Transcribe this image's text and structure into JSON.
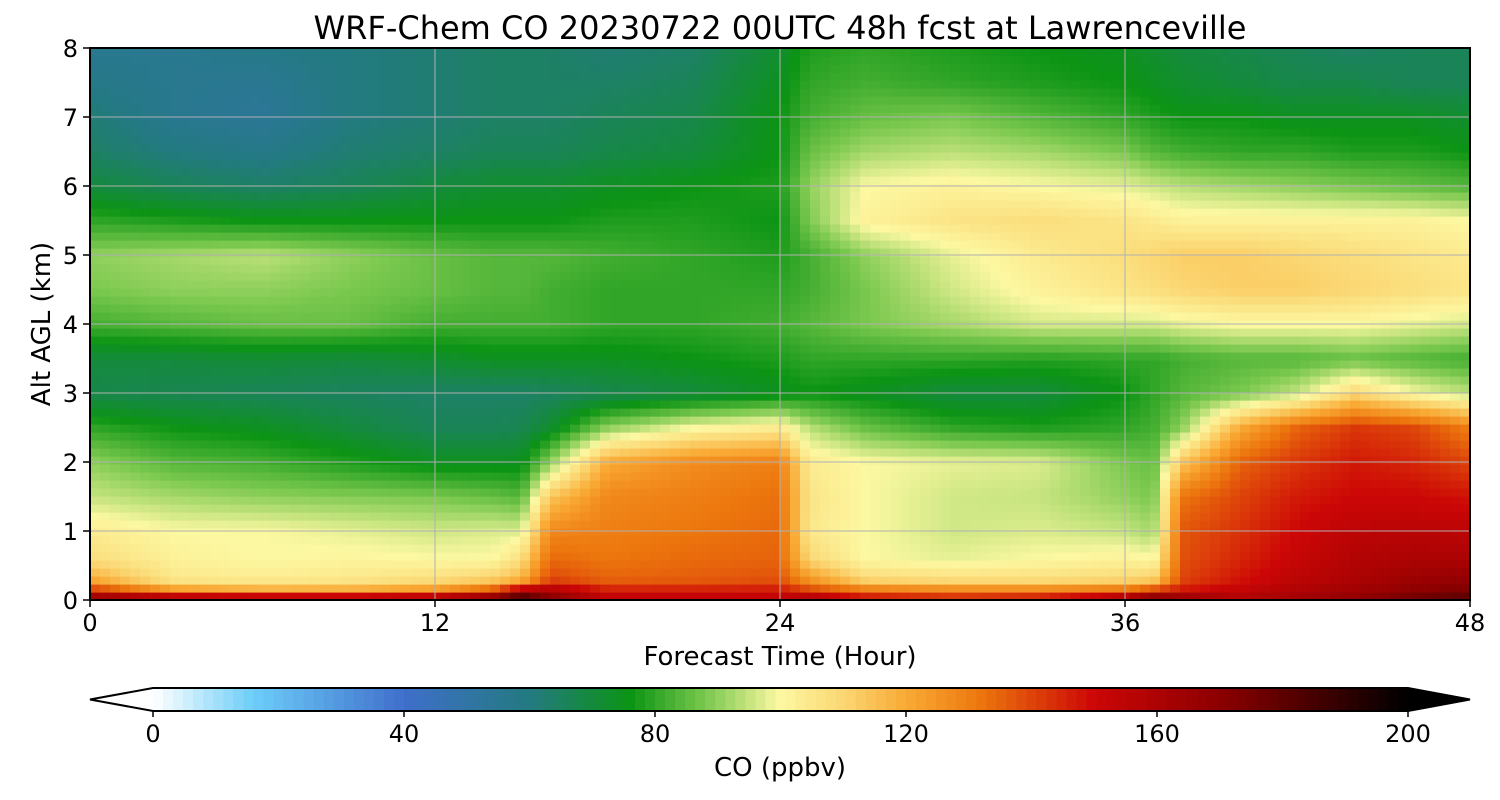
{
  "chart_data": {
    "type": "heatmap",
    "title": "WRF-Chem CO  20230722 00UTC 48h fcst at Lawrenceville",
    "xlabel": "Forecast Time (Hour)",
    "ylabel": "Alt AGL (km)",
    "xlim": [
      0,
      48
    ],
    "ylim": [
      0,
      8
    ],
    "x_ticks": [
      "0",
      "12",
      "24",
      "36",
      "48"
    ],
    "y_ticks": [
      "0",
      "1",
      "2",
      "3",
      "4",
      "5",
      "6",
      "7",
      "8"
    ],
    "grid": true,
    "x_hours": [
      0,
      3,
      6,
      9,
      12,
      14,
      15,
      16,
      18,
      21,
      24,
      25,
      27,
      30,
      33,
      36,
      37,
      38,
      40,
      42,
      44,
      46,
      48
    ],
    "z_km": [
      0,
      0.1,
      0.3,
      0.6,
      1.0,
      1.5,
      2.0,
      2.5,
      3.0,
      3.5,
      4.0,
      4.5,
      5.0,
      5.5,
      6.0,
      6.5,
      7.0,
      7.5,
      8.0
    ],
    "co_ppbv": [
      [
        180,
        185,
        185,
        185,
        185,
        190,
        195,
        175,
        155,
        155,
        155,
        170,
        155,
        150,
        155,
        175,
        190,
        180,
        160,
        165,
        170,
        180,
        185
      ],
      [
        150,
        130,
        125,
        125,
        130,
        145,
        170,
        165,
        150,
        150,
        150,
        145,
        138,
        135,
        135,
        140,
        150,
        150,
        155,
        160,
        165,
        170,
        175
      ],
      [
        120,
        105,
        104,
        105,
        108,
        112,
        118,
        140,
        135,
        136,
        138,
        125,
        110,
        108,
        108,
        110,
        112,
        140,
        148,
        155,
        160,
        165,
        168
      ],
      [
        108,
        102,
        100,
        101,
        100,
        100,
        108,
        134,
        132,
        134,
        135,
        110,
        100,
        98,
        100,
        102,
        100,
        138,
        145,
        152,
        158,
        160,
        160
      ],
      [
        104,
        100,
        100,
        98,
        96,
        97,
        97,
        128,
        130,
        132,
        134,
        105,
        100,
        96,
        97,
        95,
        92,
        137,
        143,
        150,
        155,
        156,
        155
      ],
      [
        95,
        92,
        90,
        89,
        88,
        86,
        84,
        114,
        128,
        130,
        133,
        106,
        100,
        96,
        95,
        90,
        88,
        132,
        140,
        147,
        150,
        150,
        148
      ],
      [
        90,
        84,
        82,
        78,
        74,
        74,
        74,
        90,
        120,
        127,
        130,
        104,
        100,
        98,
        97,
        88,
        86,
        114,
        135,
        142,
        147,
        145,
        140
      ],
      [
        80,
        76,
        74,
        70,
        66,
        66,
        67,
        72,
        90,
        100,
        104,
        94,
        86,
        80,
        78,
        80,
        82,
        90,
        120,
        135,
        142,
        140,
        130
      ],
      [
        68,
        67,
        66,
        65,
        64,
        64,
        64,
        65,
        67,
        70,
        74,
        76,
        74,
        70,
        70,
        76,
        80,
        84,
        88,
        95,
        110,
        100,
        94
      ],
      [
        70,
        70,
        71,
        70,
        72,
        74,
        74,
        74,
        74,
        76,
        78,
        80,
        80,
        80,
        79,
        80,
        80,
        82,
        84,
        84,
        86,
        84,
        82
      ],
      [
        82,
        84,
        86,
        86,
        82,
        82,
        82,
        82,
        80,
        80,
        82,
        84,
        88,
        92,
        96,
        96,
        96,
        98,
        100,
        100,
        100,
        98,
        96
      ],
      [
        88,
        90,
        90,
        88,
        86,
        84,
        84,
        82,
        80,
        80,
        80,
        82,
        88,
        96,
        102,
        106,
        108,
        110,
        112,
        112,
        110,
        108,
        106
      ],
      [
        90,
        92,
        94,
        90,
        86,
        84,
        84,
        84,
        82,
        80,
        78,
        82,
        90,
        98,
        104,
        108,
        110,
        112,
        112,
        110,
        108,
        106,
        104
      ],
      [
        80,
        78,
        76,
        76,
        76,
        76,
        76,
        76,
        78,
        78,
        76,
        88,
        102,
        106,
        108,
        106,
        104,
        102,
        102,
        102,
        102,
        102,
        100
      ],
      [
        70,
        66,
        64,
        66,
        70,
        72,
        72,
        72,
        74,
        76,
        78,
        90,
        100,
        102,
        100,
        98,
        96,
        94,
        92,
        90,
        88,
        86,
        84
      ],
      [
        64,
        60,
        58,
        62,
        64,
        66,
        66,
        66,
        68,
        70,
        76,
        86,
        92,
        94,
        92,
        88,
        84,
        82,
        80,
        80,
        78,
        78,
        76
      ],
      [
        62,
        56,
        54,
        60,
        62,
        64,
        64,
        64,
        66,
        68,
        76,
        82,
        86,
        88,
        84,
        80,
        78,
        76,
        76,
        74,
        74,
        74,
        72
      ],
      [
        58,
        56,
        55,
        60,
        62,
        64,
        64,
        64,
        64,
        66,
        74,
        80,
        82,
        80,
        78,
        76,
        74,
        72,
        70,
        68,
        68,
        66,
        66
      ],
      [
        56,
        56,
        58,
        60,
        62,
        64,
        64,
        64,
        62,
        64,
        72,
        78,
        80,
        78,
        76,
        74,
        72,
        70,
        68,
        66,
        64,
        66,
        66
      ]
    ],
    "colorbar": {
      "label": "CO  (ppbv)",
      "min": 0,
      "max": 200,
      "ticks": [
        "0",
        "40",
        "80",
        "120",
        "160",
        "200"
      ],
      "extend": "both",
      "colors": [
        {
          "value": 0,
          "color": "#ffffff"
        },
        {
          "value": 16,
          "color": "#6ccdf8"
        },
        {
          "value": 40,
          "color": "#3f6fcb"
        },
        {
          "value": 60,
          "color": "#237a80"
        },
        {
          "value": 76,
          "color": "#0c9414"
        },
        {
          "value": 88,
          "color": "#7ac84e"
        },
        {
          "value": 100,
          "color": "#fcf8a2"
        },
        {
          "value": 110,
          "color": "#fbd773"
        },
        {
          "value": 120,
          "color": "#f9aa35"
        },
        {
          "value": 132,
          "color": "#ec760d"
        },
        {
          "value": 150,
          "color": "#cc0606"
        },
        {
          "value": 170,
          "color": "#8c0000"
        },
        {
          "value": 200,
          "color": "#000000"
        }
      ]
    }
  }
}
